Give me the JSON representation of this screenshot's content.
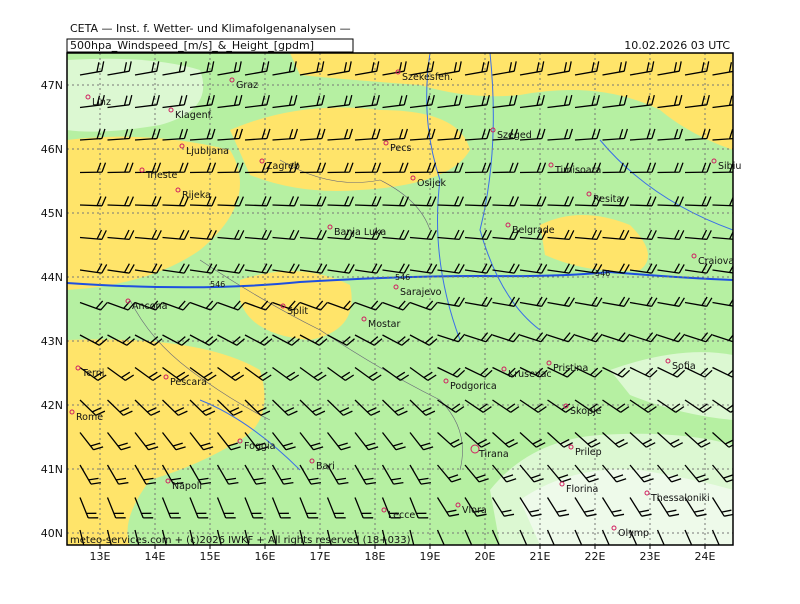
{
  "header": {
    "title": "CETA — Inst. f. Wetter- und Klimafolgenanalysen —",
    "product": "500hpa_Windspeed_[m/s]_&_Height_[gpdm]",
    "valid": "10.02.2026 03 UTC"
  },
  "map": {
    "lon_labels": [
      "13E",
      "14E",
      "15E",
      "16E",
      "17E",
      "18E",
      "19E",
      "20E",
      "21E",
      "22E",
      "23E",
      "24E"
    ],
    "lat_labels": [
      "47N",
      "46N",
      "45N",
      "44N",
      "43N",
      "42N",
      "41N",
      "40N"
    ],
    "contour_labels": [
      "546",
      "546",
      "546"
    ],
    "cities": [
      "Linz",
      "Graz",
      "Szekesfeh.",
      "Klagenf.",
      "Ljubljana",
      "Zagreb",
      "Pecs",
      "Szeged",
      "Trieste",
      "Rijeka",
      "Osijek",
      "Timisoara",
      "Sibiu",
      "Resita",
      "Banja Luka",
      "Belgrade",
      "Craiova",
      "Ancona",
      "Split",
      "Sarajevo",
      "Mostar",
      "Terni",
      "Pescara",
      "Podgorica",
      "Krusevac",
      "Pristina",
      "Sofia",
      "Rome",
      "Skopje",
      "Foggia",
      "Bari",
      "Tirana",
      "Prilep",
      "Napoli",
      "Florina",
      "Thessaloniki",
      "Lecce",
      "Vlora",
      "Olymp"
    ]
  },
  "footer": {
    "credit": "meteo-services.com + (c)2026 IWKF + All rights reserved (18+033)"
  }
}
